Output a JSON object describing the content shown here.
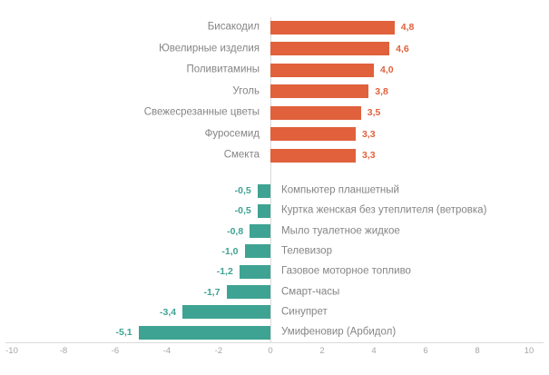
{
  "chart_data": {
    "type": "bar",
    "orientation": "horizontal",
    "title": "",
    "xlabel": "",
    "ylabel": "",
    "xlim": [
      -10,
      10
    ],
    "grid": "zero-line-only",
    "legend": "none",
    "x_ticks": [
      -10,
      -8,
      -6,
      -4,
      -2,
      0,
      2,
      4,
      6,
      8,
      10
    ],
    "x_tick_labels": [
      "-10",
      "-8",
      "-6",
      "-4",
      "-2",
      "0",
      "2",
      "4",
      "6",
      "8",
      "10"
    ],
    "value_decimal_separator": ",",
    "items": [
      {
        "label": "Бисакодил",
        "value": 4.8,
        "display": "4,8",
        "group": "positive"
      },
      {
        "label": "Ювелирные изделия",
        "value": 4.6,
        "display": "4,6",
        "group": "positive"
      },
      {
        "label": "Поливитамины",
        "value": 4.0,
        "display": "4,0",
        "group": "positive"
      },
      {
        "label": "Уголь",
        "value": 3.8,
        "display": "3,8",
        "group": "positive"
      },
      {
        "label": "Свежесрезанные цветы",
        "value": 3.5,
        "display": "3,5",
        "group": "positive"
      },
      {
        "label": "Фуросемид",
        "value": 3.3,
        "display": "3,3",
        "group": "positive"
      },
      {
        "label": "Смекта",
        "value": 3.3,
        "display": "3,3",
        "group": "positive"
      },
      {
        "label": "Компьютер планшетный",
        "value": -0.5,
        "display": "-0,5",
        "group": "negative"
      },
      {
        "label": "Куртка женская без утеплителя (ветровка)",
        "value": -0.5,
        "display": "-0,5",
        "group": "negative"
      },
      {
        "label": "Мыло туалетное жидкое",
        "value": -0.8,
        "display": "-0,8",
        "group": "negative"
      },
      {
        "label": "Телевизор",
        "value": -1.0,
        "display": "-1,0",
        "group": "negative"
      },
      {
        "label": "Газовое моторное топливо",
        "value": -1.2,
        "display": "-1,2",
        "group": "negative"
      },
      {
        "label": "Смарт-часы",
        "value": -1.7,
        "display": "-1,7",
        "group": "negative"
      },
      {
        "label": "Синупрет",
        "value": -3.4,
        "display": "-3,4",
        "group": "negative"
      },
      {
        "label": "Умифеновир (Арбидол)",
        "value": -5.1,
        "display": "-5,1",
        "group": "negative"
      }
    ],
    "colors": {
      "positive_bar": "#E0613C",
      "negative_bar": "#3EA392",
      "positive_value_text": "#E0613C",
      "negative_value_text": "#3EA392",
      "category_text": "#858585",
      "axis_tick_text": "#A6A6A6",
      "axis_line": "#D9D9D9",
      "zero_gridline": "#D9D9D9"
    }
  }
}
